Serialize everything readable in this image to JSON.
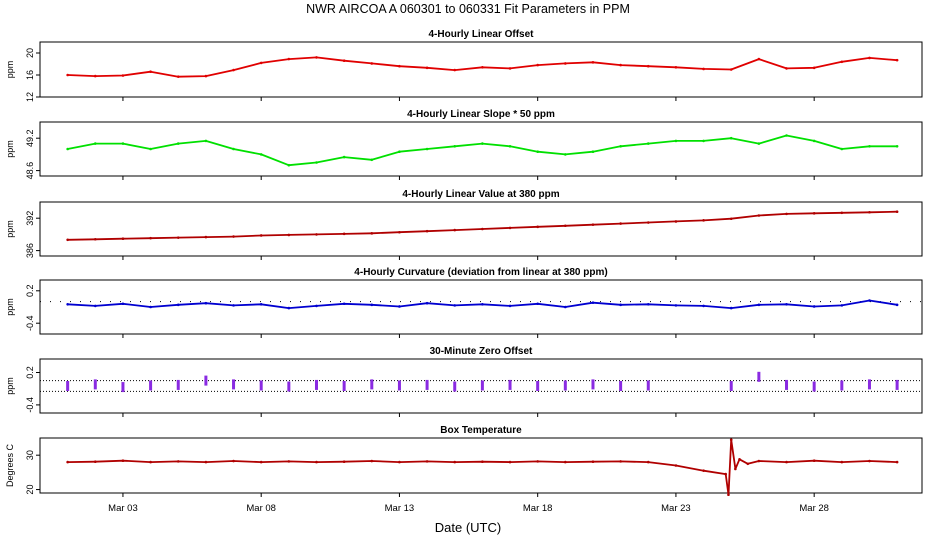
{
  "figure": {
    "title": "NWR   AIRCOA A   060301 to 060331   Fit Parameters in PPM",
    "xlabel": "Date (UTC)"
  },
  "chart_data": [
    {
      "type": "line",
      "title": "4-Hourly Linear Offset",
      "ylabel": "ppm",
      "yticks": [
        "12",
        "16",
        "20"
      ],
      "ylim": [
        12,
        22
      ],
      "color": "#e00000",
      "x_day": [
        1,
        2,
        3,
        4,
        5,
        6,
        7,
        8,
        9,
        10,
        11,
        12,
        13,
        14,
        15,
        16,
        17,
        18,
        19,
        20,
        21,
        22,
        23,
        24,
        25,
        26,
        27,
        28,
        29,
        30,
        31
      ],
      "values": [
        16.0,
        15.8,
        15.9,
        16.6,
        15.7,
        15.8,
        16.9,
        18.2,
        18.9,
        19.2,
        18.6,
        18.1,
        17.6,
        17.3,
        16.9,
        17.4,
        17.2,
        17.8,
        18.1,
        18.3,
        17.8,
        17.6,
        17.4,
        17.1,
        17.0,
        18.9,
        17.2,
        17.3,
        18.4,
        19.1,
        18.7
      ]
    },
    {
      "type": "line",
      "title": "4-Hourly Linear Slope * 50 ppm",
      "ylabel": "ppm",
      "yticks": [
        "48.6",
        "49.2"
      ],
      "ylim": [
        48.5,
        49.5
      ],
      "color": "#00e000",
      "x_day": [
        1,
        2,
        3,
        4,
        5,
        6,
        7,
        8,
        9,
        10,
        11,
        12,
        13,
        14,
        15,
        16,
        17,
        18,
        19,
        20,
        21,
        22,
        23,
        24,
        25,
        26,
        27,
        28,
        29,
        30,
        31
      ],
      "values": [
        49.0,
        49.1,
        49.1,
        49.0,
        49.1,
        49.15,
        49.0,
        48.9,
        48.7,
        48.75,
        48.85,
        48.8,
        48.95,
        49.0,
        49.05,
        49.1,
        49.05,
        48.95,
        48.9,
        48.95,
        49.05,
        49.1,
        49.15,
        49.15,
        49.2,
        49.1,
        49.25,
        49.15,
        49.0,
        49.05,
        49.05
      ]
    },
    {
      "type": "line",
      "title": "4-Hourly Linear Value at 380 ppm",
      "ylabel": "ppm",
      "yticks": [
        "386",
        "392"
      ],
      "ylim": [
        385,
        395
      ],
      "color": "#b00000",
      "x_day": [
        1,
        2,
        3,
        4,
        5,
        6,
        7,
        8,
        9,
        10,
        11,
        12,
        13,
        14,
        15,
        16,
        17,
        18,
        19,
        20,
        21,
        22,
        23,
        24,
        25,
        26,
        27,
        28,
        29,
        30,
        31
      ],
      "values": [
        388.0,
        388.1,
        388.2,
        388.3,
        388.4,
        388.5,
        388.6,
        388.8,
        388.9,
        389.0,
        389.1,
        389.2,
        389.4,
        389.6,
        389.8,
        390.0,
        390.2,
        390.4,
        390.6,
        390.8,
        391.0,
        391.2,
        391.4,
        391.6,
        391.9,
        392.5,
        392.8,
        392.9,
        393.0,
        393.1,
        393.2
      ]
    },
    {
      "type": "line",
      "title": "4-Hourly Curvature (deviation from linear at 380 ppm)",
      "ylabel": "ppm",
      "yticks": [
        "-0.4",
        "0.2"
      ],
      "ylim": [
        -0.6,
        0.4
      ],
      "color": "#0000d0",
      "x_day": [
        1,
        2,
        3,
        4,
        5,
        6,
        7,
        8,
        9,
        10,
        11,
        12,
        13,
        14,
        15,
        16,
        17,
        18,
        19,
        20,
        21,
        22,
        23,
        24,
        25,
        26,
        27,
        28,
        29,
        30,
        31
      ],
      "values": [
        -0.05,
        -0.08,
        -0.04,
        -0.1,
        -0.06,
        -0.03,
        -0.07,
        -0.05,
        -0.12,
        -0.08,
        -0.04,
        -0.06,
        -0.09,
        -0.03,
        -0.07,
        -0.05,
        -0.08,
        -0.04,
        -0.1,
        -0.02,
        -0.06,
        -0.05,
        -0.07,
        -0.08,
        -0.12,
        -0.06,
        -0.05,
        -0.09,
        -0.07,
        0.02,
        -0.06
      ]
    },
    {
      "type": "scatter",
      "title": "30-Minute Zero Offset",
      "ylabel": "ppm",
      "yticks": [
        "-0.4",
        "0.2"
      ],
      "ylim": [
        -0.55,
        0.45
      ],
      "color": "#8a2be2",
      "x_day": [
        1,
        2,
        3,
        4,
        5,
        6,
        7,
        8,
        9,
        10,
        11,
        12,
        13,
        14,
        15,
        16,
        17,
        18,
        19,
        20,
        21,
        22,
        25,
        26,
        27,
        28,
        29,
        30,
        31
      ],
      "values": [
        -0.05,
        -0.02,
        -0.07,
        -0.04,
        -0.03,
        0.05,
        -0.02,
        -0.04,
        -0.06,
        -0.03,
        -0.05,
        -0.02,
        -0.04,
        -0.03,
        -0.06,
        -0.04,
        -0.03,
        -0.05,
        -0.04,
        -0.02,
        -0.05,
        -0.04,
        -0.05,
        0.12,
        -0.03,
        -0.06,
        -0.04,
        -0.02,
        -0.03
      ]
    },
    {
      "type": "line",
      "title": "Box Temperature",
      "ylabel": "Degrees C",
      "yticks": [
        "20",
        "30"
      ],
      "ylim": [
        19,
        35
      ],
      "color": "#b00000",
      "x_day": [
        1,
        2,
        3,
        4,
        5,
        6,
        7,
        8,
        9,
        10,
        11,
        12,
        13,
        14,
        15,
        16,
        17,
        18,
        19,
        20,
        21,
        22,
        23,
        24,
        24.8,
        24.9,
        25.0,
        25.15,
        25.3,
        25.6,
        26,
        27,
        28,
        29,
        30,
        31
      ],
      "values": [
        28.0,
        28.1,
        28.4,
        28.0,
        28.2,
        28.0,
        28.3,
        28.0,
        28.2,
        28.0,
        28.1,
        28.3,
        28.0,
        28.2,
        28.0,
        28.1,
        28.0,
        28.2,
        28.0,
        28.1,
        28.2,
        28.0,
        27.0,
        25.5,
        24.5,
        18.5,
        34.5,
        26.0,
        28.8,
        27.5,
        28.3,
        28.0,
        28.4,
        28.0,
        28.3,
        28.0
      ]
    }
  ],
  "x_axis": {
    "range_days": [
      0,
      31.9
    ],
    "ticks": [
      {
        "day": 3,
        "label": "Mar 03"
      },
      {
        "day": 8,
        "label": "Mar 08"
      },
      {
        "day": 13,
        "label": "Mar 13"
      },
      {
        "day": 18,
        "label": "Mar 18"
      },
      {
        "day": 23,
        "label": "Mar 23"
      },
      {
        "day": 28,
        "label": "Mar 28"
      }
    ]
  }
}
